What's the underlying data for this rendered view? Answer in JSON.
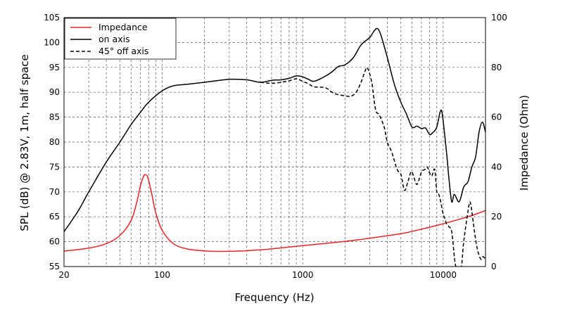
{
  "chart_data": {
    "type": "line",
    "title": "",
    "xlabel": "Frequency (Hz)",
    "ylabel_left": "SPL (dB) @ 2.83V, 1m, half space",
    "ylabel_right": "Impedance (Ohm)",
    "x_scale": "log",
    "xlim": [
      20,
      20000
    ],
    "ylim_left": [
      55,
      105
    ],
    "ylim_right": [
      0,
      100
    ],
    "x_tick_labels": [
      {
        "value": 20,
        "label": "20"
      },
      {
        "value": 100,
        "label": "100"
      },
      {
        "value": 1000,
        "label": "1000"
      },
      {
        "value": 10000,
        "label": "10000"
      }
    ],
    "y_left_ticks": [
      {
        "value": 55,
        "label": "55"
      },
      {
        "value": 60,
        "label": "60"
      },
      {
        "value": 65,
        "label": "65"
      },
      {
        "value": 70,
        "label": "70"
      },
      {
        "value": 75,
        "label": "75"
      },
      {
        "value": 80,
        "label": "80"
      },
      {
        "value": 85,
        "label": "85"
      },
      {
        "value": 90,
        "label": "90"
      },
      {
        "value": 95,
        "label": "95"
      },
      {
        "value": 100,
        "label": "100"
      },
      {
        "value": 105,
        "label": "105"
      }
    ],
    "y_right_ticks": [
      {
        "value": 0,
        "label": "0"
      },
      {
        "value": 20,
        "label": "20"
      },
      {
        "value": 40,
        "label": "40"
      },
      {
        "value": 60,
        "label": "60"
      },
      {
        "value": 80,
        "label": "80"
      },
      {
        "value": 100,
        "label": "100"
      }
    ],
    "grid": true,
    "legend_position": "top-left",
    "series": [
      {
        "name": "Impedance",
        "axis": "right",
        "color": "#e8262a",
        "dash": "solid",
        "points": [
          [
            20,
            6.2
          ],
          [
            30,
            7.4
          ],
          [
            40,
            9.2
          ],
          [
            50,
            12.5
          ],
          [
            60,
            18.5
          ],
          [
            66,
            26
          ],
          [
            70,
            32.5
          ],
          [
            74,
            36.5
          ],
          [
            76,
            36.8
          ],
          [
            79,
            35.8
          ],
          [
            84,
            29.5
          ],
          [
            90,
            21.5
          ],
          [
            100,
            14.5
          ],
          [
            120,
            9.2
          ],
          [
            150,
            7.1
          ],
          [
            200,
            6.3
          ],
          [
            300,
            6.1
          ],
          [
            500,
            6.7
          ],
          [
            1000,
            8.4
          ],
          [
            2000,
            10.1
          ],
          [
            3000,
            11.4
          ],
          [
            5000,
            13.2
          ],
          [
            7000,
            15.0
          ],
          [
            10000,
            17.2
          ],
          [
            15000,
            20.0
          ],
          [
            20000,
            22.5
          ]
        ]
      },
      {
        "name": "on axis",
        "axis": "left",
        "color": "#000000",
        "dash": "solid",
        "points": [
          [
            20,
            62
          ],
          [
            25,
            66
          ],
          [
            30,
            70
          ],
          [
            40,
            76
          ],
          [
            50,
            80
          ],
          [
            60,
            83.5
          ],
          [
            70,
            86
          ],
          [
            80,
            88
          ],
          [
            100,
            90.3
          ],
          [
            120,
            91.3
          ],
          [
            150,
            91.6
          ],
          [
            200,
            92
          ],
          [
            300,
            92.6
          ],
          [
            400,
            92.5
          ],
          [
            500,
            92
          ],
          [
            600,
            92.4
          ],
          [
            700,
            92.5
          ],
          [
            800,
            92.8
          ],
          [
            900,
            93.3
          ],
          [
            1000,
            93.1
          ],
          [
            1100,
            92.6
          ],
          [
            1200,
            92.2
          ],
          [
            1400,
            93
          ],
          [
            1600,
            94
          ],
          [
            1800,
            95.2
          ],
          [
            2000,
            95.5
          ],
          [
            2300,
            97
          ],
          [
            2600,
            99.5
          ],
          [
            3000,
            101
          ],
          [
            3200,
            102.2
          ],
          [
            3400,
            102.8
          ],
          [
            3600,
            101.5
          ],
          [
            4000,
            97
          ],
          [
            4500,
            91.5
          ],
          [
            5000,
            88
          ],
          [
            5500,
            85.5
          ],
          [
            6000,
            83
          ],
          [
            6500,
            83.2
          ],
          [
            7000,
            82.7
          ],
          [
            7500,
            82.8
          ],
          [
            8000,
            81.5
          ],
          [
            8500,
            82
          ],
          [
            9000,
            83
          ],
          [
            9500,
            86
          ],
          [
            9800,
            86
          ],
          [
            10200,
            82
          ],
          [
            10600,
            77.5
          ],
          [
            11000,
            72.5
          ],
          [
            11500,
            68
          ],
          [
            12000,
            69.5
          ],
          [
            13000,
            68
          ],
          [
            14000,
            71
          ],
          [
            15000,
            72
          ],
          [
            16000,
            75
          ],
          [
            17000,
            77
          ],
          [
            18000,
            82
          ],
          [
            19000,
            84
          ],
          [
            20000,
            82
          ]
        ]
      },
      {
        "name": "45° off axis",
        "axis": "left",
        "color": "#000000",
        "dash": "dashed",
        "points": [
          [
            500,
            92
          ],
          [
            600,
            91.8
          ],
          [
            700,
            92
          ],
          [
            800,
            92.3
          ],
          [
            900,
            92.7
          ],
          [
            1000,
            92.2
          ],
          [
            1100,
            91.7
          ],
          [
            1200,
            91.1
          ],
          [
            1400,
            91
          ],
          [
            1500,
            90.7
          ],
          [
            1600,
            90.1
          ],
          [
            1700,
            89.7
          ],
          [
            1800,
            89.5
          ],
          [
            2000,
            89.3
          ],
          [
            2200,
            89.2
          ],
          [
            2400,
            90
          ],
          [
            2600,
            92
          ],
          [
            2800,
            94.5
          ],
          [
            2900,
            94.8
          ],
          [
            3100,
            92
          ],
          [
            3300,
            86.5
          ],
          [
            3500,
            85.5
          ],
          [
            3800,
            83
          ],
          [
            4000,
            80
          ],
          [
            4300,
            78
          ],
          [
            4700,
            74.5
          ],
          [
            5000,
            73.5
          ],
          [
            5300,
            70.3
          ],
          [
            5600,
            72
          ],
          [
            5900,
            74
          ],
          [
            6100,
            73.5
          ],
          [
            6500,
            71.5
          ],
          [
            7000,
            74
          ],
          [
            7400,
            74.5
          ],
          [
            7700,
            75
          ],
          [
            8000,
            73.8
          ],
          [
            8300,
            73.2
          ],
          [
            8700,
            74.5
          ],
          [
            9000,
            70
          ],
          [
            9300,
            69.5
          ],
          [
            9600,
            68
          ],
          [
            10000,
            65.5
          ],
          [
            10300,
            64.5
          ],
          [
            10600,
            63.5
          ],
          [
            11000,
            63
          ],
          [
            11500,
            62
          ],
          [
            12000,
            57
          ],
          [
            12300,
            55
          ],
          [
            13000,
            53.5
          ],
          [
            13500,
            55
          ],
          [
            14000,
            60
          ],
          [
            15000,
            66
          ],
          [
            15500,
            68
          ],
          [
            16000,
            66
          ],
          [
            16700,
            62
          ],
          [
            17500,
            58.5
          ],
          [
            18500,
            56.5
          ],
          [
            19200,
            57
          ],
          [
            20000,
            56.5
          ]
        ]
      }
    ]
  }
}
